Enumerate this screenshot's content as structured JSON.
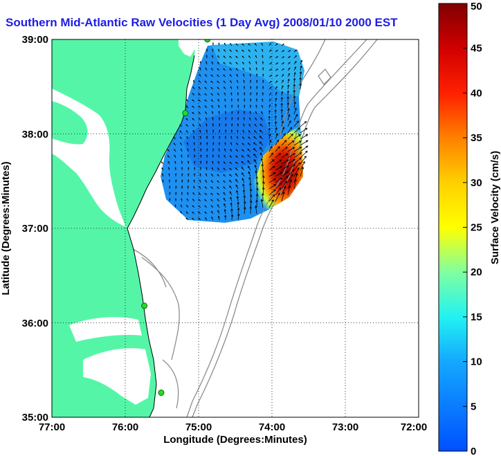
{
  "title": "Southern Mid-Atlantic Raw Velocities (1 Day Avg) 2008/01/10 2000 EST",
  "xlabel": "Longitude (Degrees:Minutes)",
  "ylabel": "Latitude (Degrees:Minutes)",
  "colorbar_label": "Surface Velocity (cm/s)",
  "x_ticks": [
    "77:00",
    "76:00",
    "75:00",
    "74:00",
    "73:00",
    "72:00"
  ],
  "y_ticks": [
    "39:00",
    "38:00",
    "37:00",
    "36:00",
    "35:00"
  ],
  "colorbar_ticks": [
    "0",
    "5",
    "10",
    "15",
    "20",
    "25",
    "30",
    "35",
    "40",
    "45",
    "50"
  ],
  "colors": {
    "land": "#55f5a8",
    "ocean": "#ffffff",
    "bathymetry": "#8c8c8c",
    "arrows": "#000000",
    "station": "#22dd22",
    "title": "#1c1ce6"
  },
  "map": {
    "lon_range": [
      -77,
      -72
    ],
    "lat_range": [
      35,
      39
    ],
    "stations": [
      {
        "lon": -74.88,
        "lat": 39.0
      },
      {
        "lon": -75.18,
        "lat": 38.22
      },
      {
        "lon": -75.74,
        "lat": 36.18
      },
      {
        "lon": -75.51,
        "lat": 35.26
      }
    ],
    "velocity_scale": [
      0,
      50
    ],
    "grid": true
  }
}
